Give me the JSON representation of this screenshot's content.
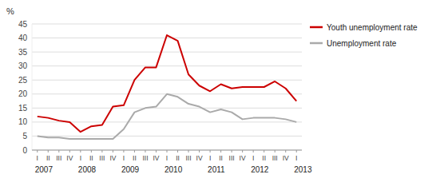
{
  "chart_data": {
    "type": "line",
    "y_label": "%",
    "categories": [
      "I",
      "II",
      "III",
      "IV",
      "I",
      "II",
      "III",
      "IV",
      "I",
      "II",
      "III",
      "IV",
      "I",
      "II",
      "III",
      "IV",
      "I",
      "II",
      "III",
      "IV",
      "I",
      "II",
      "III",
      "IV",
      "I"
    ],
    "series": [
      {
        "name": "Youth unemployment rate",
        "color": "#cc0000",
        "values": [
          12.0,
          11.5,
          10.5,
          10.0,
          6.5,
          8.5,
          9.0,
          15.5,
          16.0,
          25.0,
          29.5,
          29.5,
          41.0,
          39.0,
          27.0,
          23.0,
          21.0,
          23.5,
          22.0,
          22.5,
          22.5,
          22.5,
          24.5,
          22.0,
          17.5
        ]
      },
      {
        "name": "Unemployment rate",
        "color": "#aaaaaa",
        "values": [
          5.0,
          4.5,
          4.5,
          4.0,
          4.0,
          4.0,
          4.0,
          4.0,
          7.5,
          13.5,
          15.0,
          15.5,
          20.0,
          19.0,
          16.5,
          15.5,
          13.5,
          14.5,
          13.5,
          11.0,
          11.5,
          11.5,
          11.5,
          11.0,
          10.0
        ]
      }
    ],
    "annotations": [
      {
        "text": "2007",
        "x": 0
      },
      {
        "text": "2008",
        "x": 4
      },
      {
        "text": "2009",
        "x": 8
      },
      {
        "text": "2010",
        "x": 12
      },
      {
        "text": "2011",
        "x": 16
      },
      {
        "text": "2012",
        "x": 20
      },
      {
        "text": "2013",
        "x": 24
      }
    ],
    "ylim": [
      0,
      45
    ],
    "yticks": [
      0,
      5,
      10,
      15,
      20,
      25,
      30,
      35,
      40,
      45
    ],
    "grid": true,
    "legend": "right"
  }
}
